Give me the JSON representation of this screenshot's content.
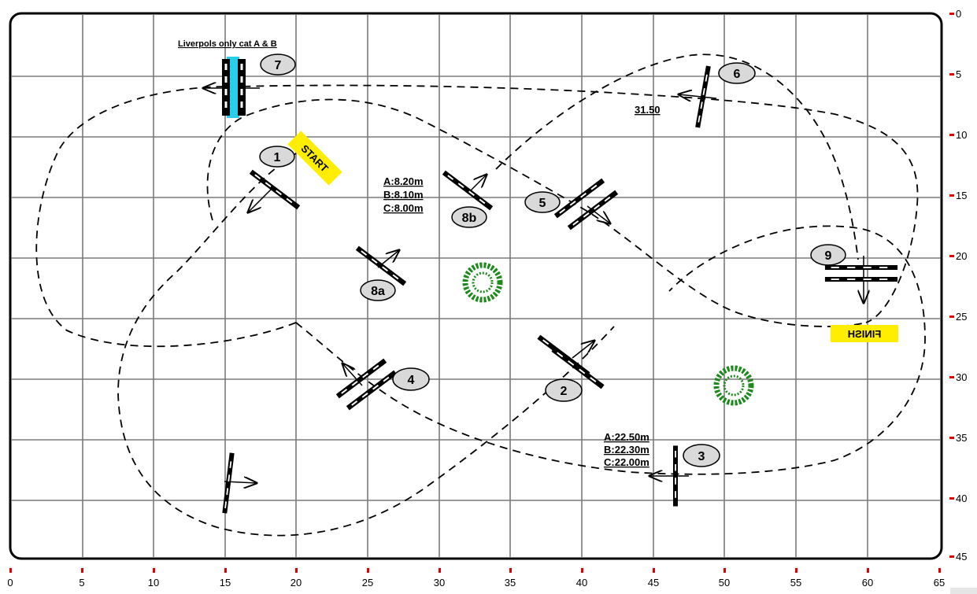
{
  "diagram": {
    "x_ticks": [
      "0",
      "5",
      "10",
      "15",
      "20",
      "25",
      "30",
      "35",
      "40",
      "45",
      "50",
      "55",
      "60",
      "65"
    ],
    "y_ticks": [
      "0",
      "5",
      "10",
      "15",
      "20",
      "25",
      "30",
      "35",
      "40",
      "45"
    ],
    "heading_note": "Liverpols only cat A & B",
    "start_label": "START",
    "finish_label": "FINISH",
    "markers": [
      {
        "id": "m1",
        "label": "1"
      },
      {
        "id": "m2",
        "label": "2"
      },
      {
        "id": "m3",
        "label": "3"
      },
      {
        "id": "m4",
        "label": "4"
      },
      {
        "id": "m5",
        "label": "5"
      },
      {
        "id": "m6",
        "label": "6"
      },
      {
        "id": "m7",
        "label": "7"
      },
      {
        "id": "m8a",
        "label": "8a"
      },
      {
        "id": "m8b",
        "label": "8b"
      },
      {
        "id": "m9",
        "label": "9"
      }
    ],
    "distance_8b": [
      "A:8.20m",
      "B:8.10m",
      "C:8.00m"
    ],
    "distance_3": [
      "A:22.50m",
      "B:22.30m",
      "C:22.00m"
    ],
    "distance_6": "31.50",
    "colors": {
      "accent_gate": "#27d0e8",
      "sign": "#ffee00",
      "tree": "#1e8a1e",
      "tick": "#e00000"
    }
  }
}
